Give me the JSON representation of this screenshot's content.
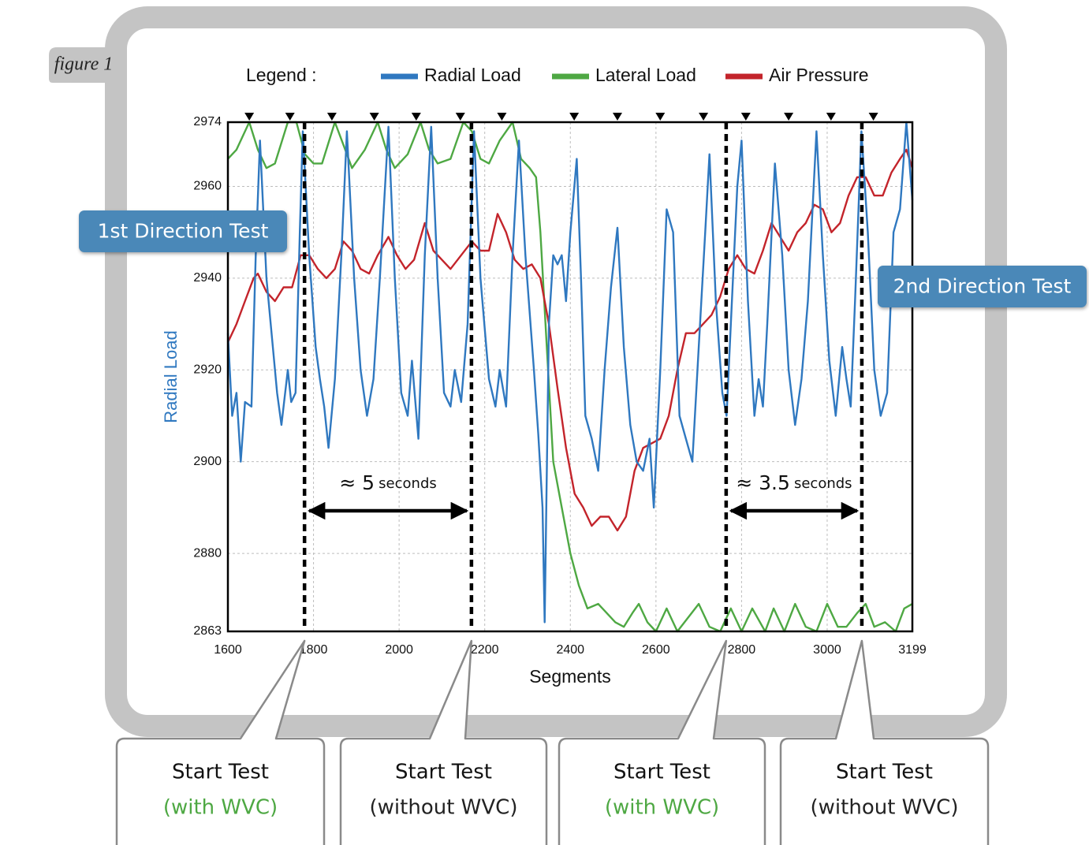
{
  "chart_data": {
    "type": "line",
    "figure_label": "figure 1",
    "legend_title": "Legend :",
    "xlabel": "Segments",
    "ylabel": "Radial Load",
    "xlim": [
      1600,
      3199
    ],
    "ylim": [
      2863,
      2974
    ],
    "xticks": [
      1600,
      1800,
      2000,
      2200,
      2400,
      2600,
      2800,
      3000,
      3199
    ],
    "yticks": [
      2863,
      2880,
      2900,
      2920,
      2940,
      2960,
      2974
    ],
    "grid": true,
    "series": [
      {
        "name": "Radial Load",
        "color": "#2f78c0",
        "x": [
          1600,
          1610,
          1620,
          1630,
          1640,
          1655,
          1665,
          1675,
          1690,
          1700,
          1715,
          1725,
          1740,
          1748,
          1758,
          1768,
          1775,
          1790,
          1805,
          1815,
          1825,
          1835,
          1850,
          1865,
          1878,
          1895,
          1910,
          1925,
          1940,
          1955,
          1975,
          1990,
          2005,
          2020,
          2030,
          2045,
          2060,
          2075,
          2090,
          2105,
          2120,
          2130,
          2145,
          2160,
          2175,
          2190,
          2210,
          2225,
          2235,
          2250,
          2265,
          2280,
          2295,
          2315,
          2325,
          2335,
          2340,
          2350,
          2360,
          2370,
          2380,
          2390,
          2400,
          2415,
          2425,
          2435,
          2450,
          2465,
          2480,
          2495,
          2510,
          2525,
          2540,
          2555,
          2570,
          2585,
          2595,
          2610,
          2625,
          2640,
          2655,
          2670,
          2685,
          2700,
          2715,
          2725,
          2740,
          2755,
          2765,
          2775,
          2790,
          2800,
          2815,
          2830,
          2840,
          2850,
          2860,
          2878,
          2895,
          2910,
          2925,
          2940,
          2955,
          2975,
          2990,
          3005,
          3020,
          3035,
          3045,
          3055,
          3065,
          3080,
          3095,
          3110,
          3125,
          3140,
          3155,
          3170,
          3185,
          3199
        ],
        "values": [
          2928,
          2910,
          2915,
          2900,
          2913,
          2912,
          2945,
          2970,
          2940,
          2930,
          2915,
          2908,
          2920,
          2913,
          2915,
          2950,
          2972,
          2945,
          2925,
          2918,
          2912,
          2903,
          2918,
          2945,
          2972,
          2940,
          2920,
          2910,
          2918,
          2940,
          2973,
          2940,
          2915,
          2910,
          2922,
          2905,
          2945,
          2973,
          2940,
          2915,
          2912,
          2920,
          2913,
          2930,
          2972,
          2940,
          2918,
          2912,
          2920,
          2912,
          2945,
          2970,
          2945,
          2920,
          2906,
          2890,
          2865,
          2930,
          2945,
          2943,
          2945,
          2935,
          2950,
          2966,
          2940,
          2910,
          2905,
          2898,
          2920,
          2938,
          2951,
          2925,
          2908,
          2900,
          2898,
          2905,
          2890,
          2920,
          2955,
          2950,
          2910,
          2905,
          2900,
          2925,
          2950,
          2967,
          2935,
          2915,
          2910,
          2930,
          2960,
          2970,
          2935,
          2910,
          2918,
          2912,
          2930,
          2965,
          2945,
          2920,
          2908,
          2918,
          2935,
          2972,
          2945,
          2922,
          2910,
          2925,
          2918,
          2912,
          2935,
          2972,
          2950,
          2920,
          2910,
          2915,
          2950,
          2955,
          2974,
          2957
        ]
      },
      {
        "name": "Lateral Load",
        "color": "#4ea843",
        "x": [
          1600,
          1620,
          1650,
          1670,
          1690,
          1710,
          1740,
          1760,
          1780,
          1800,
          1820,
          1850,
          1870,
          1890,
          1920,
          1950,
          1970,
          1990,
          2020,
          2050,
          2070,
          2090,
          2120,
          2150,
          2170,
          2190,
          2210,
          2235,
          2265,
          2285,
          2305,
          2320,
          2330,
          2345,
          2360,
          2380,
          2400,
          2420,
          2440,
          2465,
          2485,
          2505,
          2525,
          2545,
          2560,
          2580,
          2600,
          2625,
          2650,
          2675,
          2700,
          2725,
          2750,
          2775,
          2800,
          2825,
          2855,
          2875,
          2900,
          2925,
          2950,
          2975,
          3000,
          3025,
          3045,
          3070,
          3090,
          3110,
          3135,
          3160,
          3180,
          3199
        ],
        "values": [
          2966,
          2968,
          2974,
          2968,
          2964,
          2965,
          2974,
          2974,
          2967,
          2965,
          2965,
          2974,
          2969,
          2964,
          2968,
          2974,
          2968,
          2964,
          2967,
          2974,
          2968,
          2965,
          2966,
          2974,
          2972,
          2966,
          2965,
          2970,
          2974,
          2966,
          2964,
          2962,
          2950,
          2925,
          2900,
          2890,
          2880,
          2873,
          2868,
          2869,
          2867,
          2865,
          2864,
          2867,
          2869,
          2865,
          2863,
          2868,
          2863,
          2866,
          2869,
          2864,
          2863,
          2868,
          2863,
          2868,
          2863,
          2868,
          2863,
          2869,
          2864,
          2863,
          2869,
          2864,
          2864,
          2867,
          2869,
          2864,
          2865,
          2863,
          2868,
          2869
        ]
      },
      {
        "name": "Air Pressure",
        "color": "#c3242b",
        "x": [
          1600,
          1620,
          1640,
          1660,
          1670,
          1690,
          1710,
          1730,
          1750,
          1770,
          1790,
          1810,
          1830,
          1850,
          1870,
          1890,
          1910,
          1930,
          1950,
          1975,
          1995,
          2015,
          2035,
          2060,
          2080,
          2100,
          2120,
          2145,
          2170,
          2190,
          2210,
          2230,
          2250,
          2270,
          2290,
          2310,
          2330,
          2350,
          2370,
          2390,
          2410,
          2430,
          2450,
          2470,
          2490,
          2510,
          2530,
          2550,
          2570,
          2590,
          2610,
          2630,
          2650,
          2670,
          2690,
          2710,
          2730,
          2750,
          2770,
          2790,
          2810,
          2830,
          2850,
          2870,
          2890,
          2910,
          2930,
          2950,
          2970,
          2990,
          3010,
          3030,
          3050,
          3070,
          3090,
          3110,
          3130,
          3150,
          3170,
          3185,
          3199
        ],
        "values": [
          2926,
          2930,
          2935,
          2940,
          2941,
          2937,
          2935,
          2938,
          2938,
          2945,
          2945,
          2942,
          2940,
          2942,
          2948,
          2946,
          2942,
          2941,
          2945,
          2949,
          2945,
          2942,
          2944,
          2952,
          2946,
          2944,
          2942,
          2945,
          2948,
          2946,
          2946,
          2954,
          2950,
          2944,
          2942,
          2943,
          2940,
          2930,
          2916,
          2903,
          2893,
          2890,
          2886,
          2888,
          2888,
          2885,
          2888,
          2898,
          2903,
          2904,
          2905,
          2910,
          2920,
          2928,
          2928,
          2930,
          2932,
          2936,
          2942,
          2945,
          2942,
          2941,
          2946,
          2952,
          2949,
          2946,
          2950,
          2952,
          2956,
          2955,
          2950,
          2952,
          2958,
          2962,
          2962,
          2958,
          2958,
          2963,
          2966,
          2968,
          2964
        ]
      }
    ],
    "markers": [
      1650,
      1745,
      1843,
      1942,
      2040,
      2143,
      2240,
      2409,
      2510,
      2610,
      2711,
      2810,
      2910,
      3009,
      3108
    ],
    "events": [
      {
        "x": 1779,
        "title": "Start Test",
        "detail": "(with WVC)",
        "detail_color": "#4ea843"
      },
      {
        "x": 2169,
        "title": "Start Test",
        "detail": "(without WVC)",
        "detail_color": "#222222"
      },
      {
        "x": 2764,
        "title": "Start Test",
        "detail": "(with WVC)",
        "detail_color": "#4ea843"
      },
      {
        "x": 3081,
        "title": "Start Test",
        "detail": "(without WVC)",
        "detail_color": "#222222"
      }
    ],
    "intervals": [
      {
        "approx": "≈ 5",
        "unit": "seconds"
      },
      {
        "approx": "≈ 3.5",
        "unit": "seconds"
      }
    ],
    "direction_labels": [
      "1st Direction Test",
      "2nd Direction Test"
    ]
  }
}
